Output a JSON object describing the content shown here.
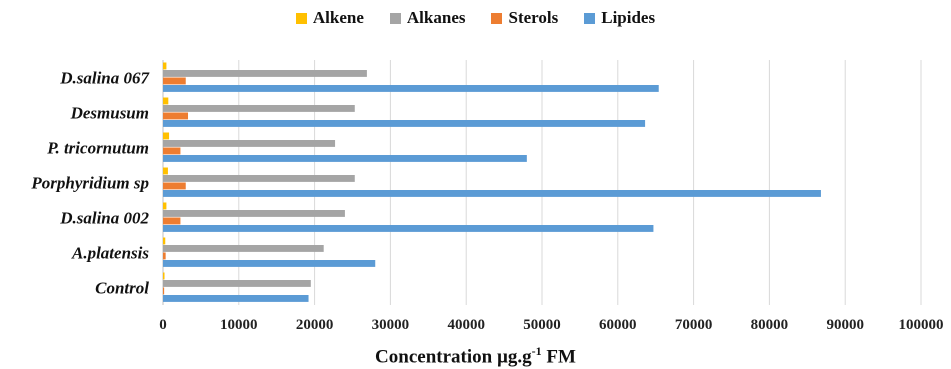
{
  "chart_data": {
    "type": "bar",
    "orientation": "horizontal",
    "categories": [
      "Control",
      "A.platensis",
      "D.salina 002",
      "Porphyridium sp",
      "P. tricornutum",
      "Desmusum",
      "D.salina 067"
    ],
    "series": [
      {
        "name": "Alkene",
        "color": "#FFC000",
        "values": [
          200,
          300,
          450,
          650,
          800,
          700,
          450
        ]
      },
      {
        "name": "Alkanes",
        "color": "#A5A5A5",
        "values": [
          19500,
          21200,
          24000,
          25300,
          22700,
          25300,
          26900
        ]
      },
      {
        "name": "Sterols",
        "color": "#ED7D31",
        "values": [
          150,
          350,
          2300,
          3000,
          2300,
          3300,
          3000
        ]
      },
      {
        "name": "Lipides",
        "color": "#5B9BD5",
        "values": [
          19200,
          28000,
          64700,
          86800,
          48000,
          63600,
          65400
        ]
      }
    ],
    "legend_order": [
      "Alkene",
      "Alkanes",
      "Sterols",
      "Lipides"
    ],
    "xlim": [
      0,
      100000
    ],
    "xticks": [
      "0",
      "10000",
      "20000",
      "30000",
      "40000",
      "50000",
      "60000",
      "70000",
      "80000",
      "90000",
      "100000"
    ],
    "xlabel": "Concentration µg.g",
    "xlabel_superscript": "-1",
    "xlabel_suffix": " FM",
    "grid": "vertical",
    "legend_position": "top"
  }
}
